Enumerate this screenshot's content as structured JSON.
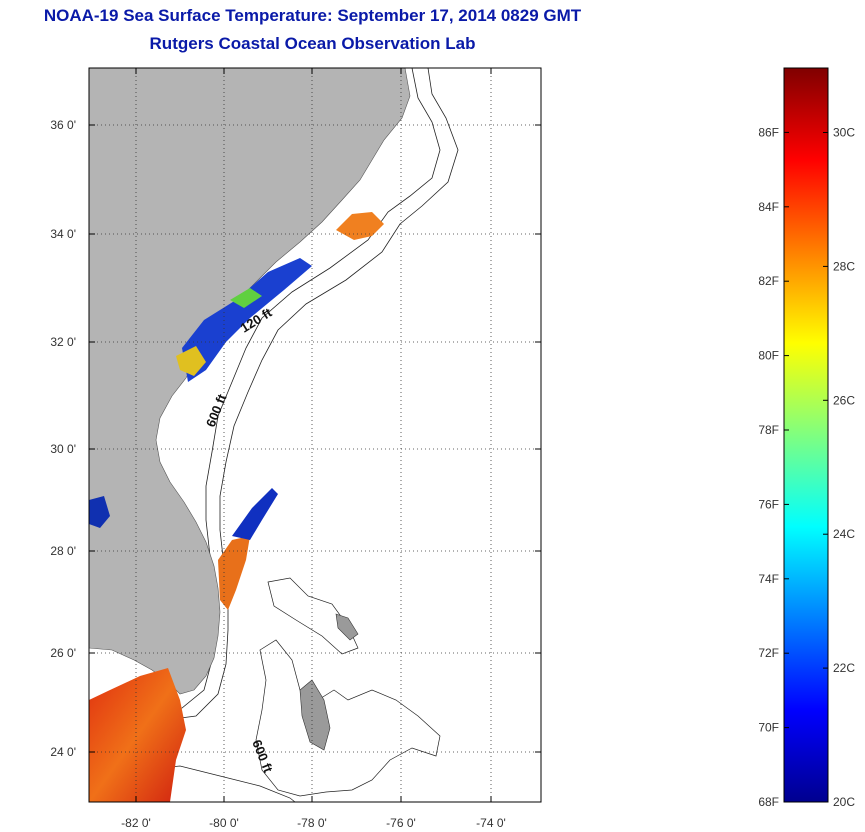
{
  "title": {
    "line1": "NOAA-19 Sea Surface Temperature:  September 17, 2014 0829 GMT",
    "line2": "Rutgers Coastal Ocean Observation Lab"
  },
  "map": {
    "lat_labels": [
      "24 0'",
      "26 0'",
      "28 0'",
      "30 0'",
      "32 0'",
      "34 0'",
      "36 0'"
    ],
    "lon_labels": [
      "-82 0'",
      "-80 0'",
      "-78 0'",
      "-76 0'",
      "-74 0'"
    ],
    "isobath_labels": [
      "120 ft",
      "600 ft",
      "600 ft"
    ],
    "land_color": "#b4b4b4",
    "grid": "dotted"
  },
  "colorbar": {
    "fahrenheit_labels": [
      "68F",
      "70F",
      "72F",
      "74F",
      "76F",
      "78F",
      "80F",
      "82F",
      "84F",
      "86F"
    ],
    "celsius_labels": [
      "20C",
      "22C",
      "24C",
      "26C",
      "28C",
      "30C"
    ],
    "colormap": "jet"
  }
}
